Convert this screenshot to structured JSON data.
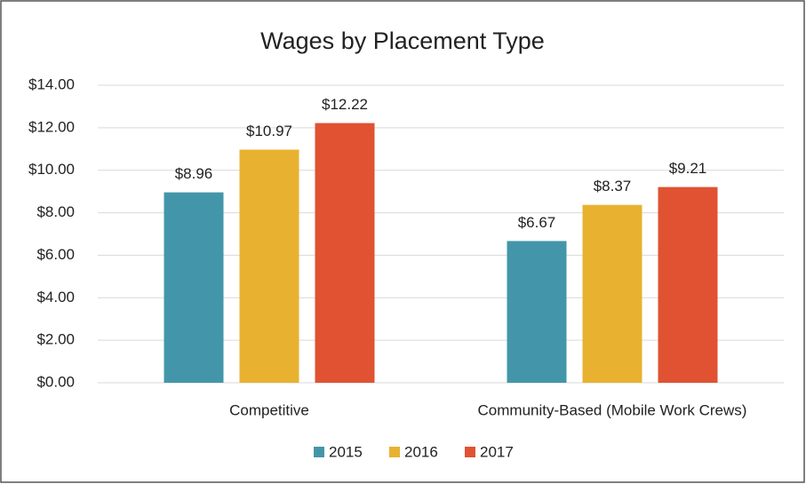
{
  "chart_data": {
    "type": "bar",
    "title": "Wages by Placement Type",
    "categories": [
      "Competitive",
      "Community-Based (Mobile Work Crews)"
    ],
    "series": [
      {
        "name": "2015",
        "color": "#4396a9",
        "values": [
          8.96,
          6.67
        ],
        "value_labels": [
          "$8.96",
          "$6.67"
        ]
      },
      {
        "name": "2016",
        "color": "#e8b230",
        "values": [
          10.97,
          8.37
        ],
        "value_labels": [
          "$10.97",
          "$8.37"
        ]
      },
      {
        "name": "2017",
        "color": "#e05232",
        "values": [
          12.22,
          9.21
        ],
        "value_labels": [
          "$12.22",
          "$9.21"
        ]
      }
    ],
    "ylim": [
      0,
      14
    ],
    "yticks": [
      {
        "value": 0,
        "label": "$0.00"
      },
      {
        "value": 2,
        "label": "$2.00"
      },
      {
        "value": 4,
        "label": "$4.00"
      },
      {
        "value": 6,
        "label": "$6.00"
      },
      {
        "value": 8,
        "label": "$8.00"
      },
      {
        "value": 10,
        "label": "$10.00"
      },
      {
        "value": 12,
        "label": "$12.00"
      },
      {
        "value": 14,
        "label": "$14.00"
      }
    ],
    "grid": true,
    "legend": "bottom"
  }
}
